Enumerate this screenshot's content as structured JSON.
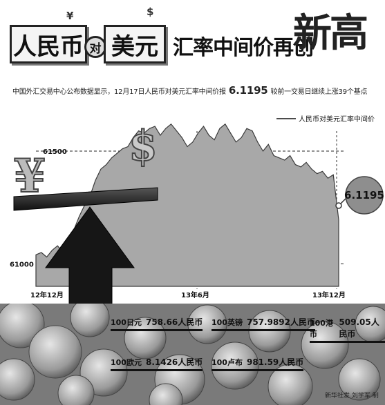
{
  "title": {
    "rmb": "人民币",
    "dui": "对",
    "usd": "美元",
    "middle": "汇率中间价再创",
    "big": "新高",
    "yen_symbol": "¥",
    "dollar_symbol": "$"
  },
  "subtitle": {
    "before": "中国外汇交易中心公布数据显示，12月17日人民币对美元汇率中间价报",
    "value": "6.1195",
    "after": "较前一交易日继续上涨39个基点"
  },
  "chart_data": {
    "type": "area",
    "series_label": "人民币对美元汇率中间价",
    "y_ticks": [
      "61500",
      "61000"
    ],
    "ylim": [
      60900,
      61650
    ],
    "x_labels": [
      "12年12月",
      "13年6月",
      "13年12月"
    ],
    "end_value_label": "6.1195",
    "values": [
      61040,
      61050,
      61030,
      61060,
      61080,
      61050,
      61100,
      61150,
      61210,
      61260,
      61300,
      61370,
      61420,
      61440,
      61470,
      61490,
      61510,
      61520,
      61560,
      61590,
      61580,
      61600,
      61610,
      61570,
      61600,
      61620,
      61590,
      61560,
      61520,
      61540,
      61580,
      61610,
      61570,
      61550,
      61600,
      61620,
      61580,
      61540,
      61560,
      61600,
      61590,
      61540,
      61500,
      61530,
      61480,
      61470,
      61460,
      61480,
      61440,
      61430,
      61450,
      61420,
      61400,
      61410,
      61380,
      61395,
      61195
    ]
  },
  "rates": [
    {
      "lhs": "100日元",
      "rhs": "758.66人民币"
    },
    {
      "lhs": "100英镑",
      "rhs": "757.9892人民币"
    },
    {
      "lhs": "100港币",
      "rhs": "509.05人民币"
    },
    {
      "lhs": "100欧元",
      "rhs": "8.1426人民币"
    },
    {
      "lhs": "100卢布",
      "rhs": "981.59人民币"
    }
  ],
  "credit": "新华社发 刘学军 制",
  "colors": {
    "area": "#a8a8a8",
    "area_edge": "#3a3a3a",
    "ink": "#111111"
  }
}
